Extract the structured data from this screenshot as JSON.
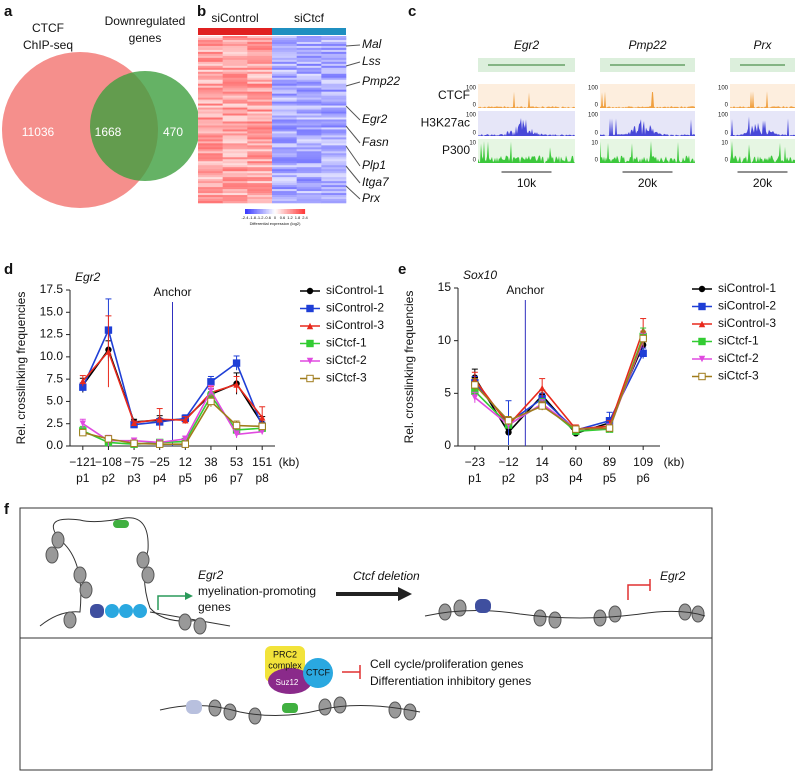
{
  "panel_labels": [
    "a",
    "b",
    "c",
    "d",
    "e",
    "f"
  ],
  "venn": {
    "left_label": [
      "CTCF",
      "ChIP-seq"
    ],
    "right_label": [
      "Downregulated",
      "genes"
    ],
    "left_only": "11036",
    "overlap": "1668",
    "right_only": "470"
  },
  "heatmap": {
    "groups": [
      "siControl",
      "siCtcf"
    ],
    "genes": [
      "Mal",
      "Lss",
      "Pmp22",
      "Egr2",
      "Fasn",
      "Plp1",
      "Itga7",
      "Prx"
    ],
    "colorbar_ticks": [
      "-2.4",
      "-1.8",
      "-1.2",
      "-0.6",
      "0",
      "0.6",
      "1.2",
      "1.8",
      "2.4"
    ],
    "colorbar_label": "Differential expression (log2)"
  },
  "tracks": {
    "genes": [
      "Egr2",
      "Pmp22",
      "Prx"
    ],
    "rows": [
      "CTCF",
      "H3K27ac",
      "P300"
    ],
    "row_max": [
      "100",
      "100",
      "10"
    ],
    "row_min": "0",
    "scale_bars": [
      "10k",
      "20k",
      "20k"
    ]
  },
  "chart_data": [
    {
      "type": "line",
      "title": "Egr2",
      "ylabel": "Rel. crosslinking frequencies",
      "x_unit": "(kb)",
      "annotation": "Anchor",
      "categories": [
        "−121",
        "−108",
        "−75",
        "−25",
        "12",
        "38",
        "53",
        "151"
      ],
      "positions": [
        "p1",
        "p2",
        "p3",
        "p4",
        "p5",
        "p6",
        "p7",
        "p8"
      ],
      "ylim": [
        0,
        17.5
      ],
      "yticks": [
        {
          "value": 0,
          "label": "0.0"
        },
        2.5,
        {
          "value": 5,
          "label": "5.0"
        },
        7.5,
        {
          "value": 10,
          "label": "10.0"
        },
        12.5,
        {
          "value": 15,
          "label": "15.0"
        },
        17.5
      ],
      "series": [
        {
          "name": "siControl-1",
          "color": "#000000",
          "marker": "circle",
          "values": [
            6.8,
            10.8,
            2.7,
            2.9,
            3.0,
            5.8,
            7.0,
            2.5
          ],
          "errors": [
            0.8,
            1.0,
            0.3,
            0.5,
            0.4,
            0.6,
            1.2,
            0.8
          ]
        },
        {
          "name": "siControl-2",
          "color": "#1f3fd6",
          "marker": "square",
          "values": [
            6.6,
            13.0,
            2.4,
            2.7,
            3.1,
            7.2,
            9.3,
            2.2
          ],
          "errors": [
            0.5,
            3.5,
            0.3,
            0.4,
            0.4,
            0.6,
            0.8,
            0.5
          ]
        },
        {
          "name": "siControl-3",
          "color": "#e8291c",
          "marker": "triangle",
          "values": [
            7.3,
            10.6,
            2.6,
            3.0,
            2.9,
            6.0,
            6.9,
            3.2
          ],
          "errors": [
            0.6,
            4.0,
            0.2,
            1.2,
            0.4,
            0.7,
            0.9,
            1.2
          ]
        },
        {
          "name": "siCtcf-1",
          "color": "#33cc33",
          "marker": "square",
          "values": [
            1.7,
            0.4,
            0.2,
            0.4,
            0.5,
            5.6,
            1.8,
            2.0
          ],
          "errors": [
            0.5,
            0.3,
            0.2,
            0.2,
            0.3,
            0.5,
            0.4,
            0.4
          ]
        },
        {
          "name": "siCtcf-2",
          "color": "#e04ae0",
          "marker": "triangle-down",
          "values": [
            2.5,
            0.6,
            0.6,
            0.4,
            0.8,
            6.2,
            1.3,
            1.6
          ],
          "errors": [
            0.5,
            0.6,
            0.3,
            0.3,
            0.3,
            0.6,
            0.4,
            0.3
          ]
        },
        {
          "name": "siCtcf-3",
          "color": "#a07c1c",
          "marker": "open-square",
          "values": [
            1.5,
            0.8,
            0.3,
            0.2,
            0.2,
            5.0,
            2.3,
            2.2
          ],
          "errors": [
            0.3,
            0.3,
            0.2,
            0.2,
            0.2,
            0.6,
            0.5,
            0.4
          ]
        }
      ]
    },
    {
      "type": "line",
      "title": "Sox10",
      "ylabel": "Rel. crosslinking frequencies",
      "x_unit": "(kb)",
      "annotation": "Anchor",
      "categories": [
        "−23",
        "−12",
        "14",
        "60",
        "89",
        "109"
      ],
      "positions": [
        "p1",
        "p2",
        "p3",
        "p4",
        "p5",
        "p6"
      ],
      "ylim": [
        0,
        15
      ],
      "yticks": [
        0,
        5,
        10,
        15
      ],
      "series": [
        {
          "name": "siControl-1",
          "color": "#000000",
          "marker": "circle",
          "values": [
            6.5,
            1.3,
            4.8,
            1.2,
            2.2,
            9.6
          ],
          "errors": [
            0.8,
            0.3,
            0.5,
            0.3,
            0.4,
            0.6
          ]
        },
        {
          "name": "siControl-2",
          "color": "#1f3fd6",
          "marker": "square",
          "values": [
            6.0,
            2.2,
            4.5,
            1.5,
            2.4,
            8.8
          ],
          "errors": [
            0.6,
            2.1,
            0.5,
            0.4,
            0.8,
            0.5
          ]
        },
        {
          "name": "siControl-3",
          "color": "#e8291c",
          "marker": "triangle",
          "values": [
            6.3,
            2.0,
            5.5,
            1.6,
            1.9,
            11.0
          ],
          "errors": [
            0.7,
            0.4,
            0.9,
            0.4,
            0.5,
            1.1
          ]
        },
        {
          "name": "siCtcf-1",
          "color": "#33cc33",
          "marker": "square",
          "values": [
            5.2,
            2.0,
            4.0,
            1.4,
            1.6,
            10.4
          ],
          "errors": [
            0.6,
            0.4,
            0.5,
            0.3,
            0.3,
            0.8
          ]
        },
        {
          "name": "siCtcf-2",
          "color": "#e04ae0",
          "marker": "triangle-down",
          "values": [
            4.6,
            2.0,
            4.0,
            1.6,
            1.7,
            10.0
          ],
          "errors": [
            0.5,
            0.4,
            0.4,
            0.3,
            0.4,
            0.7
          ]
        },
        {
          "name": "siCtcf-3",
          "color": "#a07c1c",
          "marker": "open-square",
          "values": [
            5.8,
            2.4,
            3.8,
            1.6,
            1.7,
            10.2
          ],
          "errors": [
            0.6,
            0.4,
            0.4,
            0.3,
            0.3,
            0.7
          ]
        }
      ]
    }
  ],
  "diagram": {
    "top": {
      "gene": "Egr2",
      "targets": [
        "myelination-promoting",
        "genes"
      ],
      "arrow_label": "Ctcf deletion",
      "silenced_gene": "Egr2"
    },
    "bottom": {
      "complex": [
        "PRC2",
        "complex"
      ],
      "suz12": "Suz12",
      "ctcf": "CTCF",
      "repressed": [
        "Cell cycle/proliferation genes",
        "Differentiation inhibitory genes"
      ]
    }
  }
}
